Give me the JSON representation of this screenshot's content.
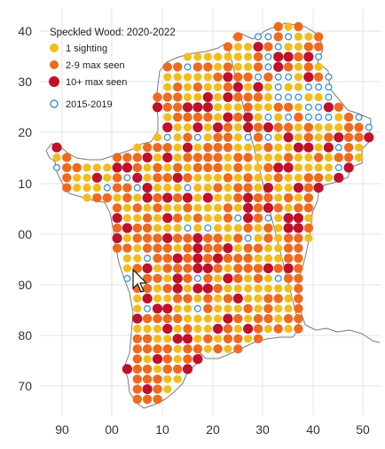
{
  "legend": {
    "title": "Speckled Wood:  2020-2022",
    "items": [
      {
        "label": "1 sighting",
        "color": "#f2bc1b",
        "style": "filled"
      },
      {
        "label": "2-9 max seen",
        "color": "#ee6a1f",
        "style": "filled"
      },
      {
        "label": "10+ max seen",
        "color": "#c0112b",
        "style": "filled"
      },
      {
        "label": "2015-2019",
        "color": "#3a8fd0",
        "style": "hollow"
      }
    ]
  },
  "axes": {
    "x_ticks": [
      "90",
      "00",
      "10",
      "20",
      "30",
      "40",
      "50"
    ],
    "y_ticks": [
      "40",
      "30",
      "20",
      "10",
      "00",
      "90",
      "80",
      "70"
    ]
  },
  "colors": {
    "one": "#f2bc1b",
    "few": "#ee6a1f",
    "many": "#c0112b",
    "old": "#3a8fd0",
    "coast": "#7a7a7a",
    "grid": "#e3e3e3"
  },
  "cursor_icon": "mouse-pointer-icon"
}
